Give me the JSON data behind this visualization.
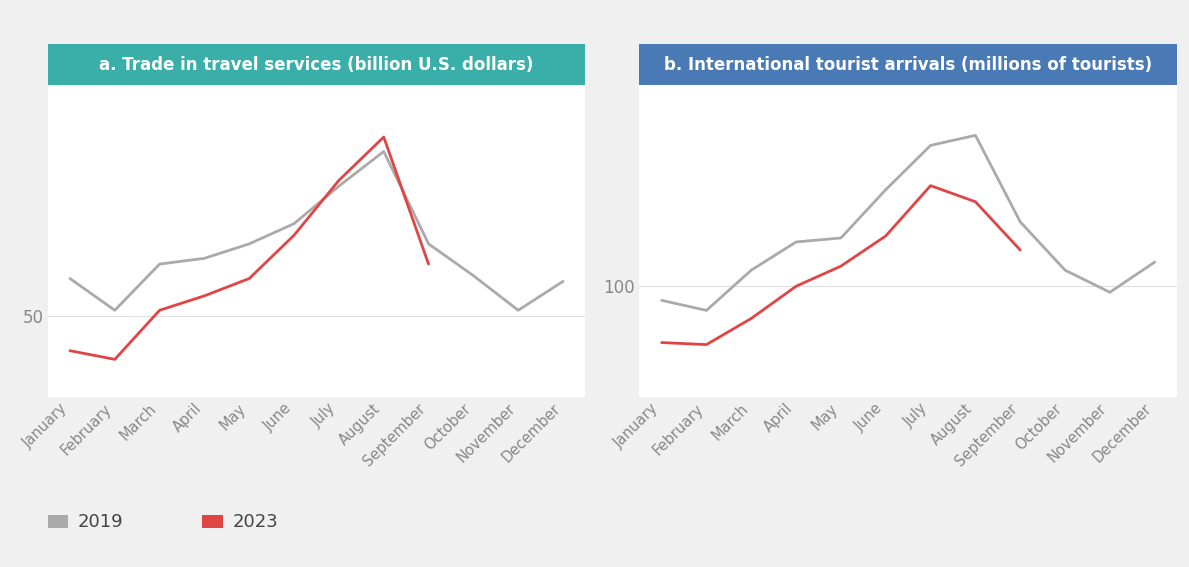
{
  "months": [
    "January",
    "February",
    "March",
    "April",
    "May",
    "June",
    "July",
    "August",
    "September",
    "October",
    "November",
    "December"
  ],
  "chart_a": {
    "title": "a. Trade in travel services (billion U.S. dollars)",
    "title_bg": "#3aafa9",
    "plot_bg": "#ffffff",
    "data_2019": [
      63,
      52,
      68,
      70,
      75,
      82,
      95,
      107,
      75,
      64,
      52,
      62
    ],
    "data_2023": [
      38,
      35,
      52,
      57,
      63,
      78,
      97,
      112,
      68,
      null,
      null,
      null
    ],
    "ytick_val": 50,
    "ylim_min": 22,
    "ylim_max": 130
  },
  "chart_b": {
    "title": "b. International tourist arrivals (millions of tourists)",
    "title_bg": "#4a7ab5",
    "plot_bg": "#ffffff",
    "data_2019": [
      93,
      88,
      108,
      122,
      124,
      148,
      170,
      175,
      132,
      108,
      97,
      112
    ],
    "data_2023": [
      72,
      71,
      84,
      100,
      110,
      125,
      150,
      142,
      118,
      null,
      null,
      null
    ],
    "ytick_val": 100,
    "ylim_min": 45,
    "ylim_max": 200
  },
  "color_2019": "#aaaaaa",
  "color_2023": "#e04545",
  "line_width": 2.0,
  "legend_2019": "2019",
  "legend_2023": "2023",
  "outer_bg": "#f0f0f0",
  "tick_label_color": "#888888",
  "grid_color": "#e0e0e0"
}
